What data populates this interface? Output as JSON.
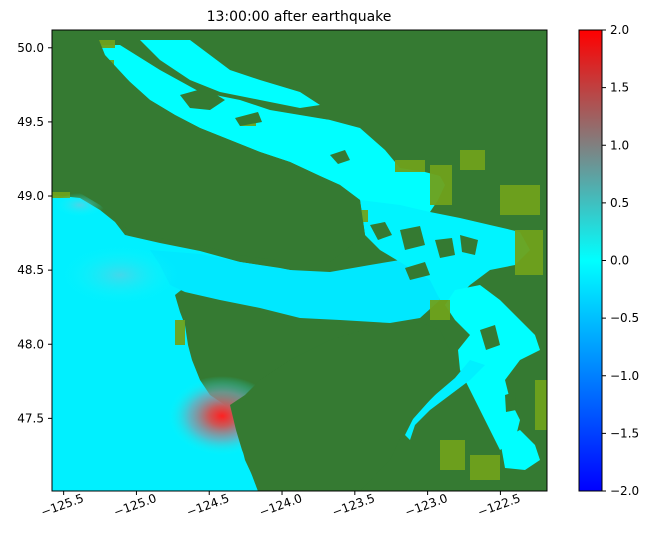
{
  "title": "13:00:00 after earthquake",
  "map": {
    "x_range": [
      -125.58,
      -122.18
    ],
    "y_range": [
      47.01,
      50.12
    ],
    "x_ticks": [
      {
        "value": -125.5,
        "label": "−125.5"
      },
      {
        "value": -125.0,
        "label": "−125.0"
      },
      {
        "value": -124.5,
        "label": "−124.5"
      },
      {
        "value": -124.0,
        "label": "−124.0"
      },
      {
        "value": -123.5,
        "label": "−123.5"
      },
      {
        "value": -123.0,
        "label": "−123.0"
      },
      {
        "value": -122.5,
        "label": "−122.5"
      }
    ],
    "y_ticks": [
      {
        "value": 50.0,
        "label": "50.0"
      },
      {
        "value": 49.5,
        "label": "49.5"
      },
      {
        "value": 49.0,
        "label": "49.0"
      },
      {
        "value": 48.5,
        "label": "48.5"
      },
      {
        "value": 48.0,
        "label": "48.0"
      },
      {
        "value": 47.5,
        "label": "47.5"
      }
    ],
    "x_tick_rotation": "rotated ~20 degrees",
    "colors": {
      "land": "#357a32",
      "shallow_fringe": "#6fa21c",
      "water_zero": "#00ffff",
      "max_wave": "#ff0000"
    }
  },
  "colorbar": {
    "range": [
      -2.0,
      2.0
    ],
    "ticks": [
      {
        "value": 2.0,
        "label": "2.0"
      },
      {
        "value": 1.5,
        "label": "1.5"
      },
      {
        "value": 1.0,
        "label": "1.0"
      },
      {
        "value": 0.5,
        "label": "0.5"
      },
      {
        "value": 0.0,
        "label": "0.0"
      },
      {
        "value": -0.5,
        "label": "−0.5"
      },
      {
        "value": -1.0,
        "label": "−1.0"
      },
      {
        "value": -1.5,
        "label": "−1.5"
      },
      {
        "value": -2.0,
        "label": "−2.0"
      }
    ],
    "stops": [
      {
        "value": -2.0,
        "color": "#0000ff"
      },
      {
        "value": -1.0,
        "color": "#0080ff"
      },
      {
        "value": 0.0,
        "color": "#00ffff"
      },
      {
        "value": 1.0,
        "color": "#808080"
      },
      {
        "value": 2.0,
        "color": "#ff0000"
      }
    ]
  }
}
